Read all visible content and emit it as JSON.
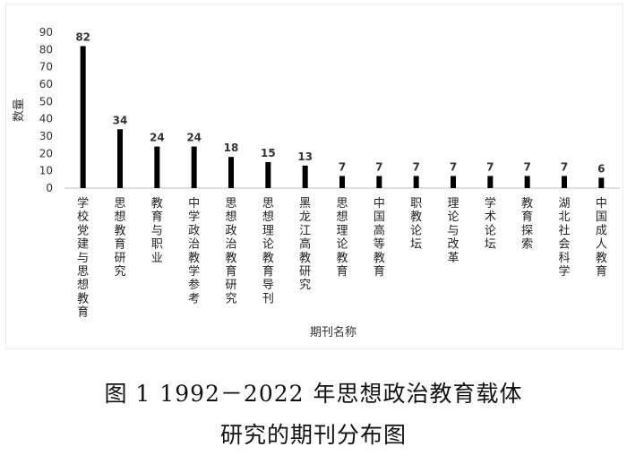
{
  "chart_data": {
    "type": "bar",
    "ylabel": "数量",
    "xlabel": "期刊名称",
    "ylim": [
      0,
      90
    ],
    "yticks": [
      0,
      10,
      20,
      30,
      40,
      50,
      60,
      70,
      80,
      90
    ],
    "grid": false,
    "legend": "none",
    "bar_color": "#000000",
    "categories": [
      "学校党建与思想教育",
      "思想教育研究",
      "教育与职业",
      "中学政治教学参考",
      "思想政治教育研究",
      "思想理论教育导刊",
      "黑龙江高教研究",
      "思想理论教育",
      "中国高等教育",
      "职教论坛",
      "理论与改革",
      "学术论坛",
      "教育探索",
      "湖北社会科学",
      "中国成人教育"
    ],
    "values": [
      82,
      34,
      24,
      24,
      18,
      15,
      13,
      7,
      7,
      7,
      7,
      7,
      7,
      7,
      6
    ]
  },
  "caption": {
    "fig_label": "图 1",
    "years": "1992－2022",
    "line1_rest": "年思想政治教育载体",
    "line2": "研究的期刊分布图"
  }
}
